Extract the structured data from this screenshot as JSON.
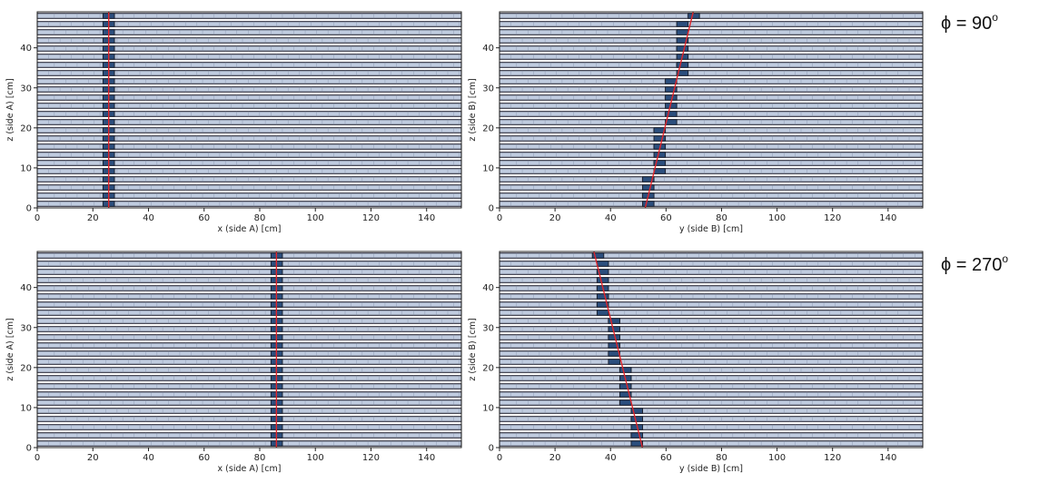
{
  "panel_labels": [
    {
      "phi": "ϕ = 90",
      "degree": "o"
    },
    {
      "phi": "ϕ = 270",
      "degree": "o"
    }
  ],
  "chart_data": [
    {
      "type": "scatter",
      "title": "",
      "xlabel": "x (side A) [cm]",
      "ylabel": "z (side A) [cm]",
      "xlim": [
        0,
        152.5
      ],
      "ylim": [
        0,
        49
      ],
      "xticks": [
        0,
        20,
        40,
        60,
        80,
        100,
        120,
        140
      ],
      "yticks": [
        0,
        10,
        20,
        30,
        40
      ],
      "grid": false,
      "colors": {
        "bar": "#c0cce0",
        "bar_edge": "#2a2a3a",
        "hit": "#2c4f7e",
        "track": "#e0242a"
      },
      "layers": 24,
      "bar_length": 4.1,
      "hits": [
        {
          "row": 0,
          "x": 25.7
        },
        {
          "row": 1,
          "x": 25.7
        },
        {
          "row": 2,
          "x": 25.7
        },
        {
          "row": 3,
          "x": 25.7
        },
        {
          "row": 4,
          "x": 25.7
        },
        {
          "row": 5,
          "x": 25.7
        },
        {
          "row": 6,
          "x": 25.7
        },
        {
          "row": 7,
          "x": 25.7
        },
        {
          "row": 8,
          "x": 25.7
        },
        {
          "row": 9,
          "x": 25.7
        },
        {
          "row": 10,
          "x": 25.7
        },
        {
          "row": 11,
          "x": 25.7
        },
        {
          "row": 12,
          "x": 25.7
        },
        {
          "row": 13,
          "x": 25.7
        },
        {
          "row": 14,
          "x": 25.7
        },
        {
          "row": 15,
          "x": 25.7
        },
        {
          "row": 16,
          "x": 25.7
        },
        {
          "row": 17,
          "x": 25.7
        },
        {
          "row": 18,
          "x": 25.7
        },
        {
          "row": 19,
          "x": 25.7
        },
        {
          "row": 20,
          "x": 25.7
        },
        {
          "row": 21,
          "x": 25.7
        },
        {
          "row": 22,
          "x": 25.7
        },
        {
          "row": 23,
          "x": 25.7
        }
      ],
      "track": {
        "x": [
          25.7,
          25.7
        ],
        "y": [
          0,
          49
        ]
      }
    },
    {
      "type": "scatter",
      "title": "",
      "xlabel": "y (side B) [cm]",
      "ylabel": "z (side B) [cm]",
      "xlim": [
        0,
        152.5
      ],
      "ylim": [
        0,
        49
      ],
      "xticks": [
        0,
        20,
        40,
        60,
        80,
        100,
        120,
        140
      ],
      "yticks": [
        0,
        10,
        20,
        30,
        40
      ],
      "grid": false,
      "colors": {
        "bar": "#c0cce0",
        "bar_edge": "#2a2a3a",
        "hit": "#2c4f7e",
        "track": "#e0242a"
      },
      "layers": 24,
      "bar_length": 4.1,
      "hits": [
        {
          "row": 0,
          "x": 53.6
        },
        {
          "row": 1,
          "x": 53.6
        },
        {
          "row": 2,
          "x": 53.6
        },
        {
          "row": 3,
          "x": 53.6
        },
        {
          "row": 4,
          "x": 57.7
        },
        {
          "row": 5,
          "x": 57.7
        },
        {
          "row": 6,
          "x": 57.7
        },
        {
          "row": 7,
          "x": 57.7
        },
        {
          "row": 8,
          "x": 57.7
        },
        {
          "row": 9,
          "x": 57.7
        },
        {
          "row": 10,
          "x": 61.8
        },
        {
          "row": 11,
          "x": 61.8
        },
        {
          "row": 12,
          "x": 61.8
        },
        {
          "row": 13,
          "x": 61.8
        },
        {
          "row": 14,
          "x": 61.8
        },
        {
          "row": 15,
          "x": 61.8
        },
        {
          "row": 16,
          "x": 65.9
        },
        {
          "row": 17,
          "x": 65.9
        },
        {
          "row": 18,
          "x": 65.9
        },
        {
          "row": 19,
          "x": 65.9
        },
        {
          "row": 20,
          "x": 65.9
        },
        {
          "row": 21,
          "x": 65.9
        },
        {
          "row": 22,
          "x": 65.9
        },
        {
          "row": 23,
          "x": 70.0
        }
      ],
      "track": {
        "x": [
          52.5,
          69.8
        ],
        "y": [
          0,
          49
        ]
      }
    },
    {
      "type": "scatter",
      "title": "",
      "xlabel": "x (side A) [cm]",
      "ylabel": "z (side A) [cm]",
      "xlim": [
        0,
        152.5
      ],
      "ylim": [
        0,
        49
      ],
      "xticks": [
        0,
        20,
        40,
        60,
        80,
        100,
        120,
        140
      ],
      "yticks": [
        0,
        10,
        20,
        30,
        40
      ],
      "grid": false,
      "colors": {
        "bar": "#c0cce0",
        "bar_edge": "#2a2a3a",
        "hit": "#2c4f7e",
        "track": "#e0242a"
      },
      "layers": 24,
      "bar_length": 4.1,
      "hits": [
        {
          "row": 0,
          "x": 86.1
        },
        {
          "row": 1,
          "x": 86.1
        },
        {
          "row": 2,
          "x": 86.1
        },
        {
          "row": 3,
          "x": 86.1
        },
        {
          "row": 4,
          "x": 86.1
        },
        {
          "row": 5,
          "x": 86.1
        },
        {
          "row": 6,
          "x": 86.1
        },
        {
          "row": 7,
          "x": 86.1
        },
        {
          "row": 8,
          "x": 86.1
        },
        {
          "row": 9,
          "x": 86.1
        },
        {
          "row": 10,
          "x": 86.1
        },
        {
          "row": 11,
          "x": 86.1
        },
        {
          "row": 12,
          "x": 86.1
        },
        {
          "row": 13,
          "x": 86.1
        },
        {
          "row": 14,
          "x": 86.1
        },
        {
          "row": 15,
          "x": 86.1
        },
        {
          "row": 16,
          "x": 86.1
        },
        {
          "row": 17,
          "x": 86.1
        },
        {
          "row": 18,
          "x": 86.1
        },
        {
          "row": 19,
          "x": 86.1
        },
        {
          "row": 20,
          "x": 86.1
        },
        {
          "row": 21,
          "x": 86.1
        },
        {
          "row": 22,
          "x": 86.1
        },
        {
          "row": 23,
          "x": 86.1
        }
      ],
      "track": {
        "x": [
          86.0,
          86.0
        ],
        "y": [
          0,
          49
        ]
      }
    },
    {
      "type": "scatter",
      "title": "",
      "xlabel": "y (side B) [cm]",
      "ylabel": "z (side B) [cm]",
      "xlim": [
        0,
        152.5
      ],
      "ylim": [
        0,
        49
      ],
      "xticks": [
        0,
        20,
        40,
        60,
        80,
        100,
        120,
        140
      ],
      "yticks": [
        0,
        10,
        20,
        30,
        40
      ],
      "grid": false,
      "colors": {
        "bar": "#c0cce0",
        "bar_edge": "#2a2a3a",
        "hit": "#2c4f7e",
        "track": "#e0242a"
      },
      "layers": 24,
      "bar_length": 4.1,
      "hits": [
        {
          "row": 0,
          "x": 49.5
        },
        {
          "row": 1,
          "x": 49.5
        },
        {
          "row": 2,
          "x": 49.5
        },
        {
          "row": 3,
          "x": 49.5
        },
        {
          "row": 4,
          "x": 49.5
        },
        {
          "row": 5,
          "x": 45.4
        },
        {
          "row": 6,
          "x": 45.4
        },
        {
          "row": 7,
          "x": 45.4
        },
        {
          "row": 8,
          "x": 45.4
        },
        {
          "row": 9,
          "x": 45.4
        },
        {
          "row": 10,
          "x": 41.3
        },
        {
          "row": 11,
          "x": 41.3
        },
        {
          "row": 12,
          "x": 41.3
        },
        {
          "row": 13,
          "x": 41.3
        },
        {
          "row": 14,
          "x": 41.3
        },
        {
          "row": 15,
          "x": 41.3
        },
        {
          "row": 16,
          "x": 37.2
        },
        {
          "row": 17,
          "x": 37.2
        },
        {
          "row": 18,
          "x": 37.2
        },
        {
          "row": 19,
          "x": 37.2
        },
        {
          "row": 20,
          "x": 37.2
        },
        {
          "row": 21,
          "x": 37.2
        },
        {
          "row": 22,
          "x": 37.2
        },
        {
          "row": 23,
          "x": 35.5
        }
      ],
      "track": {
        "x": [
          51.5,
          34.0
        ],
        "y": [
          0,
          49
        ]
      }
    }
  ]
}
